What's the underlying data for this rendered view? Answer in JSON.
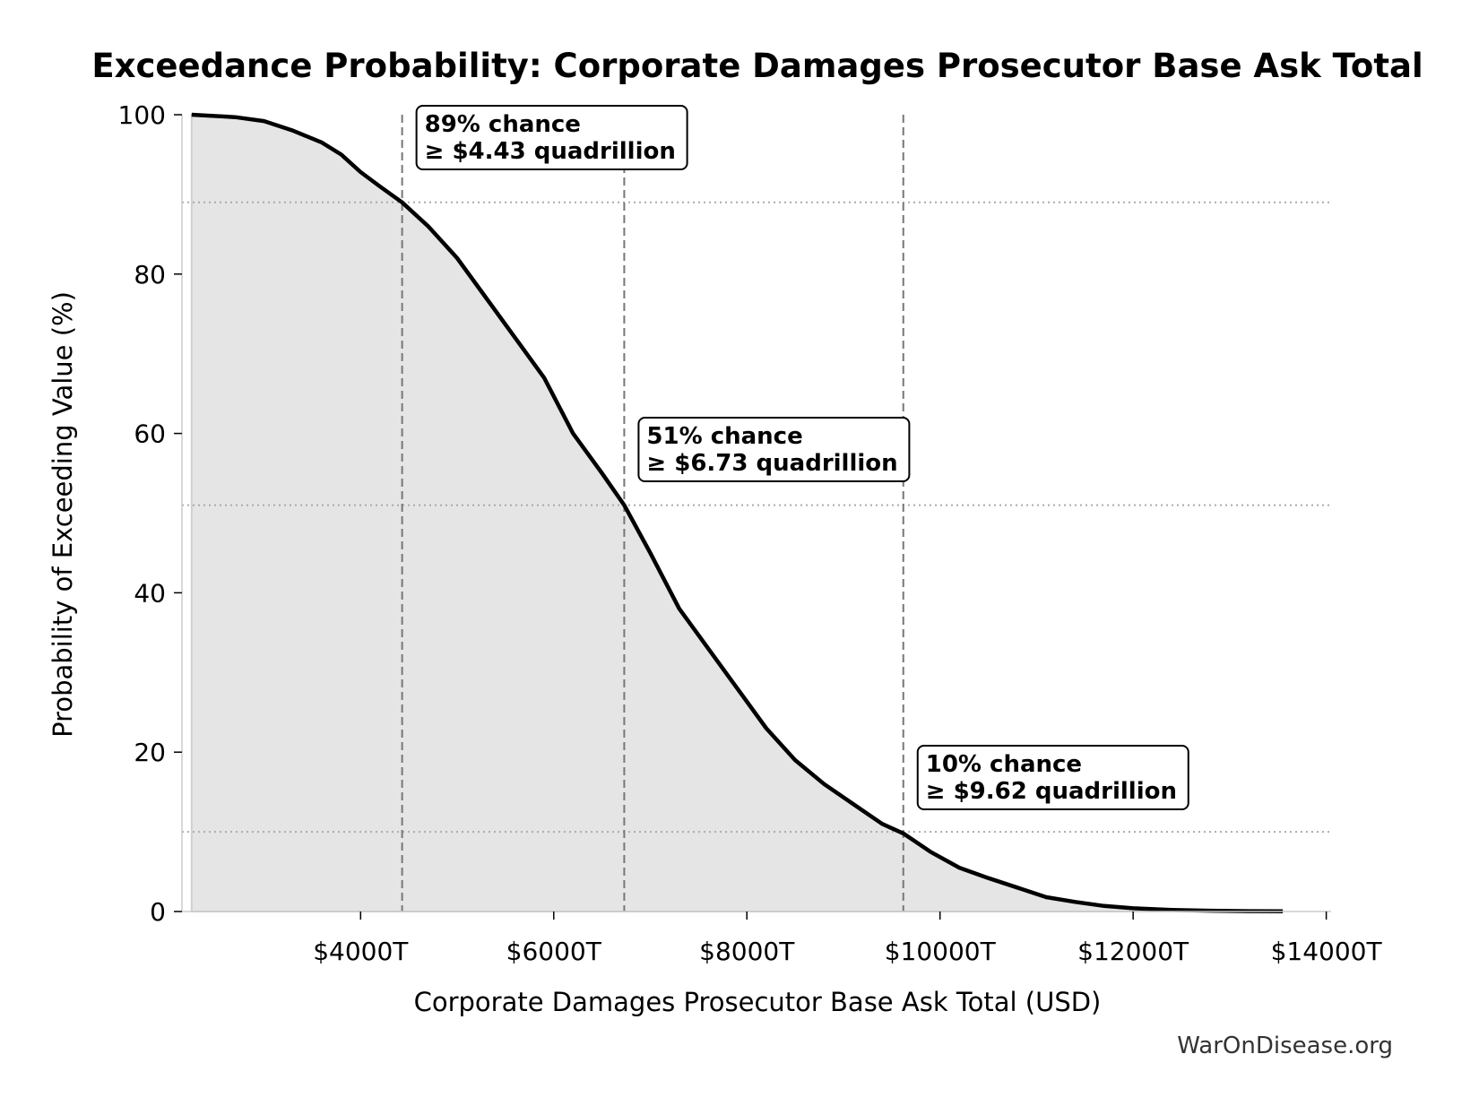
{
  "chart_data": {
    "type": "area",
    "title": "Exceedance Probability: Corporate Damages Prosecutor Base Ask Total",
    "xlabel": "Corporate Damages Prosecutor Base Ask Total (USD)",
    "ylabel": "Probability of Exceeding Value (%)",
    "xlim": [
      2150,
      14050
    ],
    "ylim": [
      0,
      100
    ],
    "x_ticks": [
      4000,
      6000,
      8000,
      10000,
      12000,
      14000
    ],
    "x_tick_labels": [
      "$4000T",
      "$6000T",
      "$8000T",
      "$10000T",
      "$12000T",
      "$14000T"
    ],
    "y_ticks": [
      0,
      20,
      40,
      60,
      80,
      100
    ],
    "y_tick_labels": [
      "0",
      "20",
      "40",
      "60",
      "80",
      "100"
    ],
    "x_unit": "trillion USD",
    "series": [
      {
        "x": [
          2250,
          2700,
          3000,
          3300,
          3600,
          3800,
          4000,
          4200,
          4430,
          4700,
          5000,
          5300,
          5600,
          5900,
          6200,
          6500,
          6730,
          7000,
          7300,
          7600,
          7900,
          8200,
          8500,
          8800,
          9100,
          9400,
          9620,
          9900,
          10200,
          10500,
          10800,
          11100,
          11400,
          11700,
          12000,
          12400,
          12800,
          13200,
          13550
        ],
        "y": [
          100,
          99.7,
          99.2,
          98,
          96.5,
          95,
          92.8,
          91,
          89,
          86,
          82,
          77,
          72,
          67,
          60,
          55,
          51,
          45,
          38,
          33,
          28,
          23,
          19,
          16,
          13.5,
          11,
          9.8,
          7.5,
          5.5,
          4.2,
          3,
          1.8,
          1.2,
          0.7,
          0.4,
          0.2,
          0.1,
          0.05,
          0.02
        ]
      }
    ],
    "reference_lines": {
      "vertical_x": [
        4430,
        6730,
        9620
      ],
      "horizontal_y": [
        89,
        51,
        10
      ]
    },
    "annotations": [
      {
        "line1": "89% chance",
        "line2": "≥ $4.43 quadrillion",
        "x": 4430,
        "y": 89
      },
      {
        "line1": "51% chance",
        "line2": "≥ $6.73 quadrillion",
        "x": 6730,
        "y": 51
      },
      {
        "line1": "10% chance",
        "line2": "≥ $9.62 quadrillion",
        "x": 9620,
        "y": 10
      }
    ],
    "grid": false,
    "legend": "none",
    "colors": {
      "line": "#000000",
      "fill": "#e5e5e5",
      "reference": "#777777",
      "hline": "#aaaaaa"
    }
  },
  "credit": "WarOnDisease.org"
}
